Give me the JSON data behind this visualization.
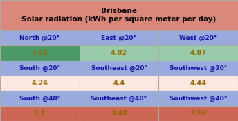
{
  "title_line1": "Brisbane",
  "title_line2": "Solar radiation (kWh per square meter per day)",
  "title_bg": "#d98878",
  "header_bg": "#99aadd",
  "header_text_color": "#1111aa",
  "rows": [
    {
      "labels": [
        "North @20°",
        "East @20°",
        "West @20°"
      ],
      "label_bg": "#99aadd",
      "label_text_color": "#1111aa",
      "values": [
        "5.42",
        "4.82",
        "4.87"
      ],
      "value_bg": [
        "#4d9966",
        "#99ccaa",
        "#99ccaa"
      ],
      "value_text_color": "#996600"
    },
    {
      "labels": [
        "South @20°",
        "Southeast @20°",
        "Southwest @20°"
      ],
      "label_bg": "#99aadd",
      "label_text_color": "#1111aa",
      "values": [
        "4.24",
        "4.4",
        "4.44"
      ],
      "value_bg": [
        "#fce8e0",
        "#fce8e0",
        "#fce8e0"
      ],
      "value_text_color": "#996600"
    },
    {
      "labels": [
        "South @40°",
        "Southeast @40°",
        "Southwest @40°"
      ],
      "label_bg": "#99aadd",
      "label_text_color": "#1111aa",
      "values": [
        "3.1",
        "3.48",
        "3.56"
      ],
      "value_bg": [
        "#cc6655",
        "#cc6655",
        "#cc6655"
      ],
      "value_text_color": "#996600"
    }
  ],
  "border_color": "#aaaaaa",
  "border_lw": 0.8,
  "title_fontsize": 7.5,
  "label_fontsize": 6.5,
  "value_fontsize": 7.0,
  "fig_width": 3.44,
  "fig_height": 1.76,
  "dpi": 100
}
